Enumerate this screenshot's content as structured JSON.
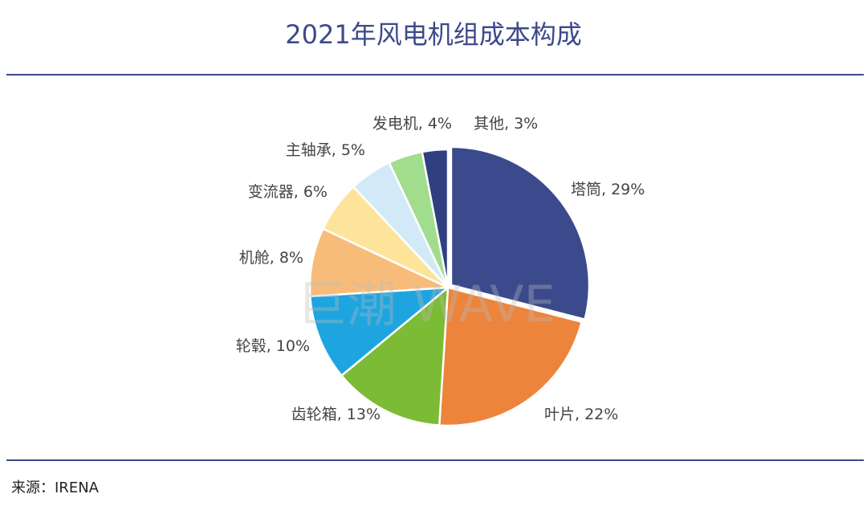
{
  "title": "2021年风电机组成本构成",
  "source": "来源：IRENA",
  "watermark": "巨潮 WAVE",
  "chart_data": {
    "type": "pie",
    "title": "2021年风电机组成本构成",
    "start": "12 o'clock, clockwise",
    "slices": [
      {
        "label": "塔筒, 29%",
        "name": "塔筒",
        "value": 29,
        "color": "#3b4a8c",
        "exploded": true
      },
      {
        "label": "叶片, 22%",
        "name": "叶片",
        "value": 22,
        "color": "#ed843b"
      },
      {
        "label": "齿轮箱, 13%",
        "name": "齿轮箱",
        "value": 13,
        "color": "#7cbb35"
      },
      {
        "label": "轮毂, 10%",
        "name": "轮毂",
        "value": 10,
        "color": "#1ea5e0"
      },
      {
        "label": "机舱, 8%",
        "name": "机舱",
        "value": 8,
        "color": "#f8bc7a"
      },
      {
        "label": "变流器, 6%",
        "name": "变流器",
        "value": 6,
        "color": "#fde49a"
      },
      {
        "label": "主轴承, 5%",
        "name": "主轴承",
        "value": 5,
        "color": "#d2eaf8"
      },
      {
        "label": "发电机, 4%",
        "name": "发电机",
        "value": 4,
        "color": "#a2dc8d"
      },
      {
        "label": "其他, 3%",
        "name": "其他",
        "value": 3,
        "color": "#2f3f80"
      }
    ]
  }
}
